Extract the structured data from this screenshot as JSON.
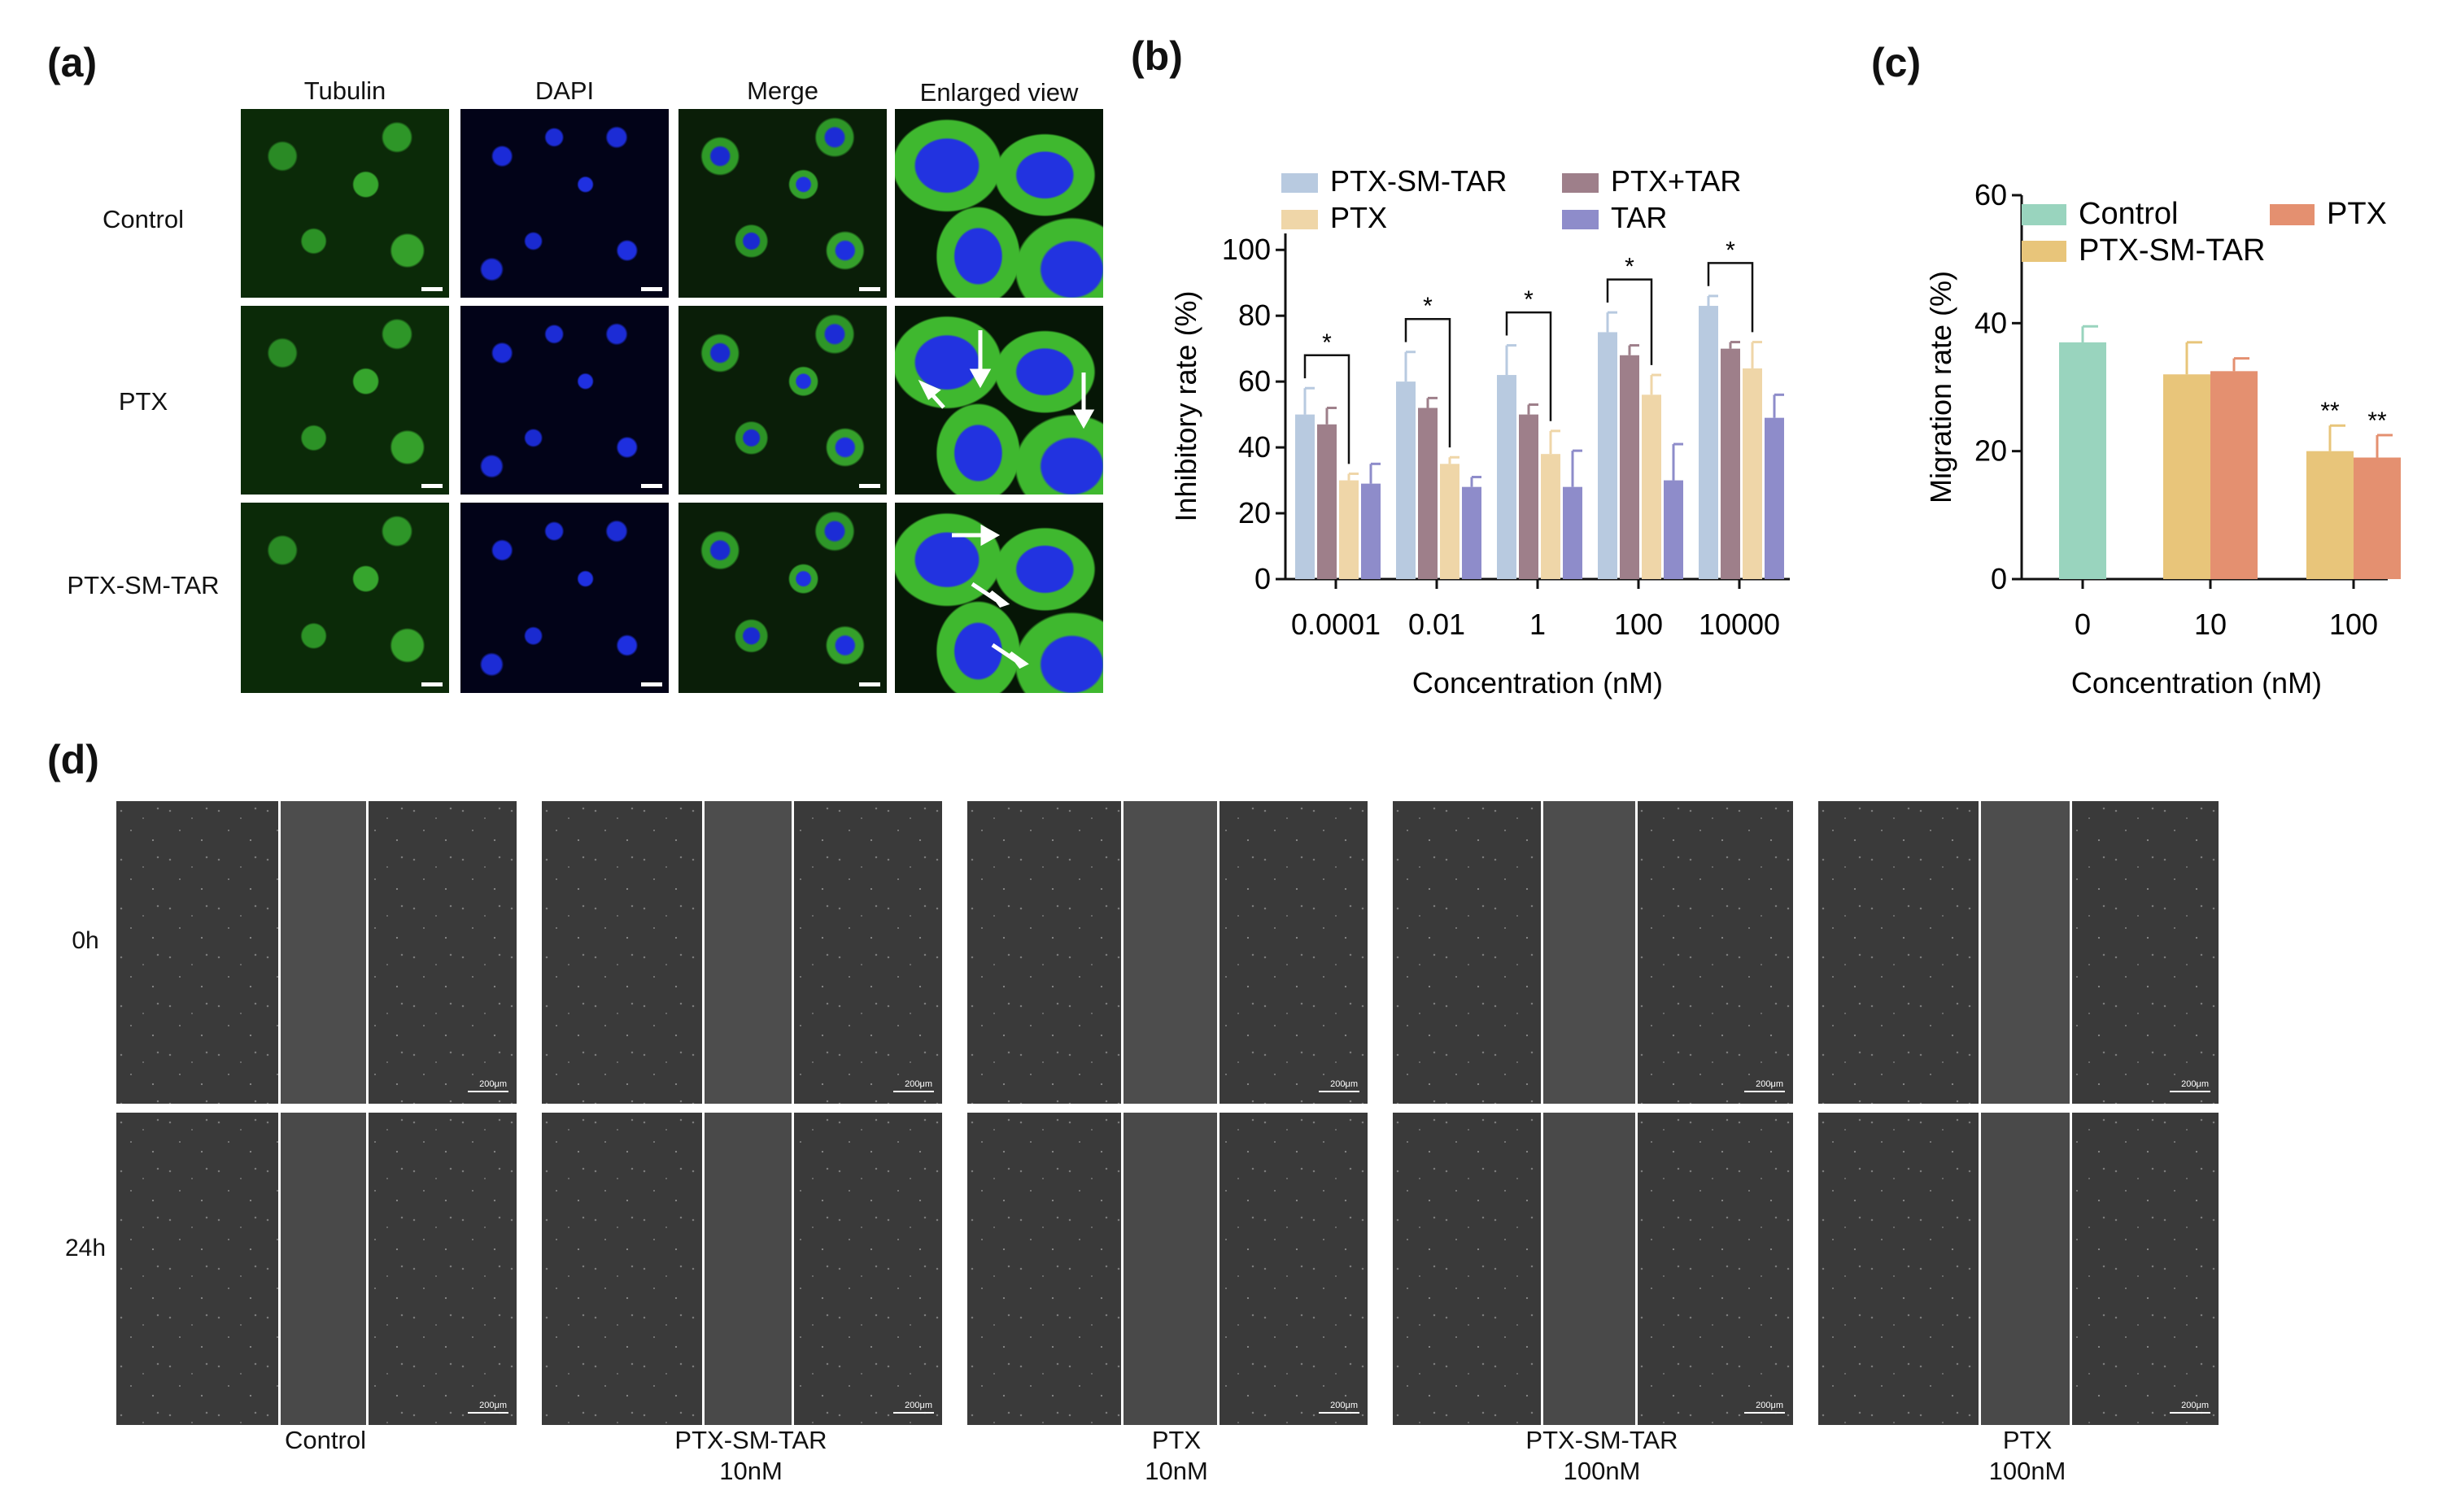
{
  "panels": {
    "a": "(a)",
    "b": "(b)",
    "c": "(c)",
    "d": "(d)"
  },
  "panel_a": {
    "columns": [
      "Tubulin",
      "DAPI",
      "Merge",
      "Enlarged view"
    ],
    "rows": [
      "Control",
      "PTX",
      "PTX-SM-TAR"
    ]
  },
  "panel_d": {
    "rows": [
      "0h",
      "24h"
    ],
    "groups": [
      {
        "line1": "Control",
        "line2": ""
      },
      {
        "line1": "PTX-SM-TAR",
        "line2": "10nM"
      },
      {
        "line1": "PTX",
        "line2": "10nM"
      },
      {
        "line1": "PTX-SM-TAR",
        "line2": "100nM"
      },
      {
        "line1": "PTX",
        "line2": "100nM"
      }
    ],
    "scale_text": "200μm"
  },
  "chart_data": [
    {
      "type": "bar",
      "panel": "b",
      "categories": [
        "0.0001",
        "0.01",
        "1",
        "100",
        "10000"
      ],
      "series": [
        {
          "name": "PTX-SM-TAR",
          "color": "#b8cae0",
          "values": [
            50,
            60,
            62,
            75,
            83
          ],
          "errors": [
            8,
            9,
            9,
            6,
            3
          ]
        },
        {
          "name": "PTX+TAR",
          "color": "#9e7f8a",
          "values": [
            47,
            52,
            50,
            68,
            70
          ],
          "errors": [
            5,
            3,
            3,
            3,
            2
          ]
        },
        {
          "name": "PTX",
          "color": "#efd6a8",
          "values": [
            30,
            35,
            38,
            56,
            64
          ],
          "errors": [
            2,
            2,
            7,
            6,
            8
          ]
        },
        {
          "name": "TAR",
          "color": "#8e8cca",
          "values": [
            29,
            28,
            28,
            30,
            49
          ],
          "errors": [
            6,
            3,
            11,
            11,
            7
          ]
        }
      ],
      "ylabel": "Inhibitory rate (%)",
      "xlabel": "Concentration (nM)",
      "yticks": [
        0,
        20,
        40,
        60,
        80,
        100
      ],
      "ylim": [
        0,
        105
      ],
      "significance": "*",
      "legend_position": "top"
    },
    {
      "type": "bar",
      "panel": "c",
      "categories": [
        "0",
        "10",
        "100"
      ],
      "series": [
        {
          "name": "Control",
          "color": "#99d4be",
          "values": [
            37,
            null,
            null
          ],
          "errors": [
            2.5,
            null,
            null
          ]
        },
        {
          "name": "PTX-SM-TAR",
          "color": "#e8c57a",
          "values": [
            null,
            32,
            20
          ],
          "errors": [
            null,
            5,
            4
          ]
        },
        {
          "name": "PTX",
          "color": "#e49070",
          "values": [
            null,
            32.5,
            19
          ],
          "errors": [
            null,
            2,
            3.5
          ]
        }
      ],
      "ylabel": "Migration rate (%)",
      "xlabel": "Concentration (nM)",
      "yticks": [
        0,
        20,
        40,
        60
      ],
      "ylim": [
        0,
        60
      ],
      "significance": "**",
      "legend_position": "top"
    }
  ]
}
